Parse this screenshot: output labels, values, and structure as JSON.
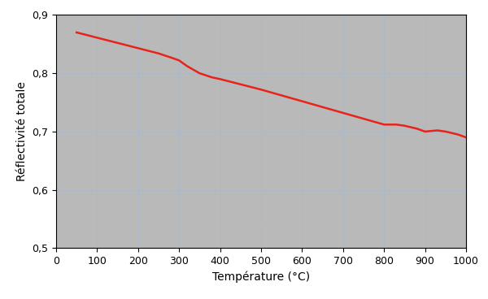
{
  "chart_data": {
    "type": "line",
    "x_label": "Température (°C)",
    "y_label": "Réflectivité totale",
    "x": [
      50,
      100,
      150,
      200,
      250,
      280,
      300,
      320,
      350,
      380,
      400,
      450,
      500,
      550,
      600,
      650,
      700,
      750,
      800,
      830,
      850,
      880,
      900,
      930,
      950,
      980,
      1000
    ],
    "values": [
      0.87,
      0.861,
      0.852,
      0.843,
      0.834,
      0.827,
      0.822,
      0.812,
      0.8,
      0.793,
      0.79,
      0.781,
      0.772,
      0.762,
      0.752,
      0.742,
      0.732,
      0.722,
      0.712,
      0.712,
      0.71,
      0.705,
      0.7,
      0.702,
      0.7,
      0.695,
      0.69
    ],
    "color": "#e8231a",
    "xlim": [
      0,
      1000
    ],
    "ylim": [
      0.5,
      0.9
    ],
    "xticks": [
      0,
      100,
      200,
      300,
      400,
      500,
      600,
      700,
      800,
      900,
      1000
    ],
    "yticks": [
      {
        "value": 0.5,
        "label": "0,5"
      },
      {
        "value": 0.6,
        "label": "0,6"
      },
      {
        "value": 0.7,
        "label": "0,7"
      },
      {
        "value": 0.8,
        "label": "0,8"
      },
      {
        "value": 0.9,
        "label": "0,9"
      }
    ],
    "grid": true
  }
}
